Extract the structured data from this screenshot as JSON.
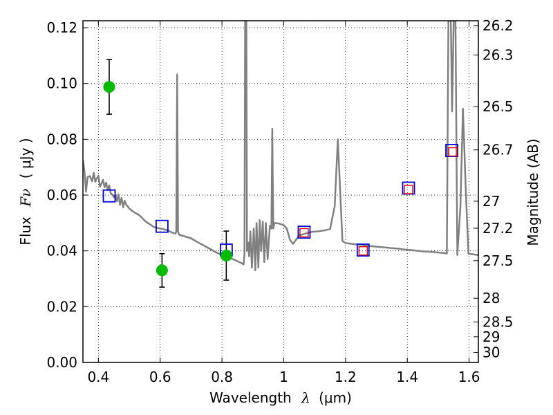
{
  "chart_data": {
    "type": "scatter",
    "xlabel_prefix": "Wavelength",
    "xlabel_symbol": "λ",
    "xlabel_unit": "(μm)",
    "ylabel_prefix": "Flux",
    "ylabel_symbol": "Fν",
    "ylabel_unit": "( μJy )",
    "y2label": "Magnitude (AB)",
    "xlim": [
      0.35,
      1.63
    ],
    "ylim": [
      0.0,
      0.1225
    ],
    "grid": true,
    "x_ticks": [
      0.4,
      0.6,
      0.8,
      1.0,
      1.2,
      1.4,
      1.6
    ],
    "x_tick_labels": [
      "0.4",
      "0.6",
      "0.8",
      "1",
      "1.2",
      "1.4",
      "1.6"
    ],
    "y_ticks": [
      0.0,
      0.02,
      0.04,
      0.06,
      0.08,
      0.1,
      0.12
    ],
    "y_tick_labels": [
      "0.00",
      "0.02",
      "0.04",
      "0.06",
      "0.08",
      "0.10",
      "0.12"
    ],
    "y2_ticks": [
      {
        "label": "26.2",
        "flux": 0.1208
      },
      {
        "label": "26.3",
        "flux": 0.1102
      },
      {
        "label": "26.5",
        "flux": 0.0917
      },
      {
        "label": "26.7",
        "flux": 0.0762
      },
      {
        "label": "27",
        "flux": 0.0578
      },
      {
        "label": "27.2",
        "flux": 0.0481
      },
      {
        "label": "27.5",
        "flux": 0.0365
      },
      {
        "label": "28",
        "flux": 0.023
      },
      {
        "label": "28.5",
        "flux": 0.0145
      },
      {
        "label": "29",
        "flux": 0.0092
      },
      {
        "label": "30",
        "flux": 0.0036
      }
    ],
    "series": [
      {
        "kind": "model_spectrum",
        "color": "#808080",
        "points": [
          [
            0.35,
            0.0725
          ],
          [
            0.355,
            0.0685
          ],
          [
            0.36,
            0.0612
          ],
          [
            0.365,
            0.0665
          ],
          [
            0.372,
            0.0668
          ],
          [
            0.38,
            0.065
          ],
          [
            0.385,
            0.068
          ],
          [
            0.39,
            0.0648
          ],
          [
            0.395,
            0.066
          ],
          [
            0.4,
            0.067
          ],
          [
            0.405,
            0.063
          ],
          [
            0.41,
            0.064
          ],
          [
            0.415,
            0.0655
          ],
          [
            0.42,
            0.0628
          ],
          [
            0.425,
            0.0645
          ],
          [
            0.43,
            0.0618
          ],
          [
            0.435,
            0.0635
          ],
          [
            0.44,
            0.0606
          ],
          [
            0.445,
            0.0602
          ],
          [
            0.45,
            0.0592
          ],
          [
            0.455,
            0.06
          ],
          [
            0.46,
            0.0578
          ],
          [
            0.465,
            0.0603
          ],
          [
            0.47,
            0.0565
          ],
          [
            0.475,
            0.059
          ],
          [
            0.48,
            0.0556
          ],
          [
            0.485,
            0.058
          ],
          [
            0.49,
            0.0566
          ],
          [
            0.5,
            0.0552
          ],
          [
            0.51,
            0.0543
          ],
          [
            0.52,
            0.0535
          ],
          [
            0.53,
            0.053
          ],
          [
            0.54,
            0.052
          ],
          [
            0.55,
            0.0508
          ],
          [
            0.56,
            0.05
          ],
          [
            0.57,
            0.0493
          ],
          [
            0.58,
            0.0485
          ],
          [
            0.6,
            0.048
          ],
          [
            0.62,
            0.0475
          ],
          [
            0.64,
            0.0465
          ],
          [
            0.65,
            0.0462
          ],
          [
            0.652,
            0.047
          ],
          [
            0.655,
            0.1032
          ],
          [
            0.658,
            0.047
          ],
          [
            0.661,
            0.0458
          ],
          [
            0.67,
            0.0455
          ],
          [
            0.7,
            0.0445
          ],
          [
            0.72,
            0.0432
          ],
          [
            0.74,
            0.042
          ],
          [
            0.76,
            0.0408
          ],
          [
            0.78,
            0.0395
          ],
          [
            0.8,
            0.0385
          ],
          [
            0.82,
            0.0378
          ],
          [
            0.84,
            0.0368
          ],
          [
            0.86,
            0.0358
          ],
          [
            0.87,
            0.0352
          ],
          [
            0.873,
            0.039
          ],
          [
            0.875,
            0.1225
          ],
          [
            0.879,
            0.1225
          ],
          [
            0.881,
            0.04
          ],
          [
            0.885,
            0.043
          ],
          [
            0.888,
            0.038
          ],
          [
            0.892,
            0.047
          ],
          [
            0.897,
            0.034
          ],
          [
            0.903,
            0.048
          ],
          [
            0.908,
            0.033
          ],
          [
            0.912,
            0.05
          ],
          [
            0.918,
            0.034
          ],
          [
            0.922,
            0.051
          ],
          [
            0.927,
            0.04
          ],
          [
            0.932,
            0.0505
          ],
          [
            0.937,
            0.036
          ],
          [
            0.942,
            0.05
          ],
          [
            0.948,
            0.037
          ],
          [
            0.955,
            0.049
          ],
          [
            0.96,
            0.048
          ],
          [
            0.963,
            0.0838
          ],
          [
            0.966,
            0.048
          ],
          [
            0.97,
            0.05
          ],
          [
            0.985,
            0.0498
          ],
          [
            1.0,
            0.0492
          ],
          [
            1.01,
            0.048
          ],
          [
            1.02,
            0.044
          ],
          [
            1.03,
            0.0425
          ],
          [
            1.05,
            0.0455
          ],
          [
            1.07,
            0.0462
          ],
          [
            1.09,
            0.0468
          ],
          [
            1.11,
            0.047
          ],
          [
            1.13,
            0.0473
          ],
          [
            1.15,
            0.0478
          ],
          [
            1.165,
            0.056
          ],
          [
            1.175,
            0.08
          ],
          [
            1.185,
            0.056
          ],
          [
            1.19,
            0.0435
          ],
          [
            1.2,
            0.0428
          ],
          [
            1.22,
            0.0425
          ],
          [
            1.25,
            0.0422
          ],
          [
            1.27,
            0.0418
          ],
          [
            1.3,
            0.0415
          ],
          [
            1.33,
            0.0412
          ],
          [
            1.35,
            0.041
          ],
          [
            1.37,
            0.0408
          ],
          [
            1.39,
            0.0405
          ],
          [
            1.42,
            0.0402
          ],
          [
            1.45,
            0.0398
          ],
          [
            1.48,
            0.0396
          ],
          [
            1.5,
            0.0394
          ],
          [
            1.52,
            0.0392
          ],
          [
            1.528,
            0.039
          ],
          [
            1.533,
            0.1225
          ],
          [
            1.541,
            0.1225
          ],
          [
            1.545,
            0.09
          ],
          [
            1.55,
            0.1225
          ],
          [
            1.556,
            0.1225
          ],
          [
            1.562,
            0.0385
          ],
          [
            1.572,
            0.056
          ],
          [
            1.58,
            0.091
          ],
          [
            1.59,
            0.06
          ],
          [
            1.598,
            0.039
          ],
          [
            1.63,
            0.0385
          ]
        ]
      },
      {
        "kind": "observed_flux",
        "color": "#00bb00",
        "points": [
          {
            "x": 0.435,
            "y": 0.0988,
            "err": 0.0098
          },
          {
            "x": 0.606,
            "y": 0.033,
            "err": 0.006
          },
          {
            "x": 0.814,
            "y": 0.0383,
            "err": 0.0088
          }
        ]
      },
      {
        "kind": "model_photometry",
        "color": "#0000dd",
        "points": [
          {
            "x": 0.435,
            "y": 0.0597
          },
          {
            "x": 0.606,
            "y": 0.0488
          },
          {
            "x": 0.814,
            "y": 0.0403
          },
          {
            "x": 1.066,
            "y": 0.0467
          },
          {
            "x": 1.257,
            "y": 0.0403
          },
          {
            "x": 1.404,
            "y": 0.0625
          },
          {
            "x": 1.544,
            "y": 0.076
          }
        ]
      },
      {
        "kind": "inner_photometry",
        "color": "#dd0000",
        "points": [
          {
            "x": 1.066,
            "y": 0.0465
          },
          {
            "x": 1.257,
            "y": 0.04
          },
          {
            "x": 1.404,
            "y": 0.062
          },
          {
            "x": 1.548,
            "y": 0.0755
          }
        ]
      }
    ]
  }
}
